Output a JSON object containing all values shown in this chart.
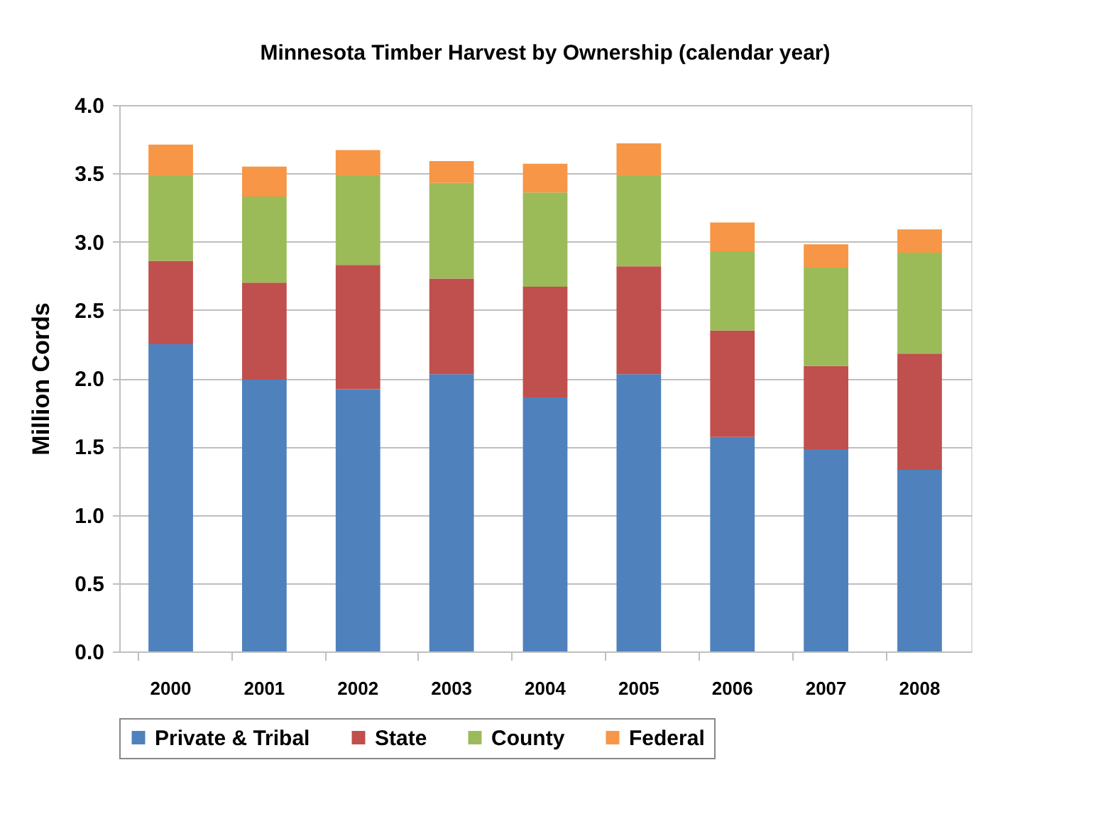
{
  "chart_data": {
    "type": "bar",
    "title": "Minnesota Timber Harvest by Ownership (calendar year)",
    "ylabel": "Million Cords",
    "categories": [
      "2000",
      "2001",
      "2002",
      "2003",
      "2004",
      "2005",
      "2006",
      "2007",
      "2008"
    ],
    "stacked": true,
    "series": [
      {
        "name": "Private & Tribal",
        "color": "#4f81bd",
        "values": [
          2.25,
          1.99,
          1.92,
          2.03,
          1.86,
          2.03,
          1.57,
          1.48,
          1.33
        ]
      },
      {
        "name": "State",
        "color": "#c0504d",
        "values": [
          0.61,
          0.71,
          0.91,
          0.7,
          0.81,
          0.79,
          0.78,
          0.61,
          0.85
        ]
      },
      {
        "name": "County",
        "color": "#9bbb59",
        "values": [
          0.62,
          0.63,
          0.65,
          0.7,
          0.69,
          0.66,
          0.58,
          0.72,
          0.74
        ]
      },
      {
        "name": "Federal",
        "color": "#f79646",
        "values": [
          0.23,
          0.22,
          0.19,
          0.16,
          0.21,
          0.24,
          0.21,
          0.17,
          0.17
        ]
      }
    ],
    "ylim": [
      0,
      4
    ],
    "yticks": [
      {
        "value": 0,
        "label": "0.0"
      },
      0.5,
      {
        "value": 1,
        "label": "1.0"
      },
      1.5,
      {
        "value": 2,
        "label": "2.0"
      },
      2.5,
      {
        "value": 3,
        "label": "3.0"
      },
      3.5,
      {
        "value": 4,
        "label": "4.0"
      }
    ],
    "grid": "y",
    "legend": "bottom"
  }
}
